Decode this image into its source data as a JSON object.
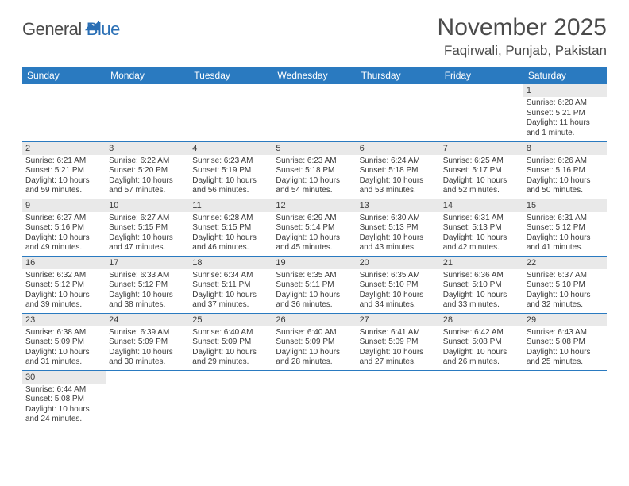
{
  "logo": {
    "general": "General",
    "blue": "Blue"
  },
  "title": "November 2025",
  "location": "Faqirwali, Punjab, Pakistan",
  "colors": {
    "header_bg": "#2a7ac0",
    "header_text": "#ffffff",
    "daynum_bg": "#e9e9e9",
    "border": "#2a7ac0",
    "text": "#3a3a3a",
    "logo_gray": "#4a4a4a",
    "logo_blue": "#2a6fb5"
  },
  "weekdays": [
    "Sunday",
    "Monday",
    "Tuesday",
    "Wednesday",
    "Thursday",
    "Friday",
    "Saturday"
  ],
  "weeks": [
    [
      null,
      null,
      null,
      null,
      null,
      null,
      {
        "n": "1",
        "sr": "Sunrise: 6:20 AM",
        "ss": "Sunset: 5:21 PM",
        "dl": "Daylight: 11 hours and 1 minute."
      }
    ],
    [
      {
        "n": "2",
        "sr": "Sunrise: 6:21 AM",
        "ss": "Sunset: 5:21 PM",
        "dl": "Daylight: 10 hours and 59 minutes."
      },
      {
        "n": "3",
        "sr": "Sunrise: 6:22 AM",
        "ss": "Sunset: 5:20 PM",
        "dl": "Daylight: 10 hours and 57 minutes."
      },
      {
        "n": "4",
        "sr": "Sunrise: 6:23 AM",
        "ss": "Sunset: 5:19 PM",
        "dl": "Daylight: 10 hours and 56 minutes."
      },
      {
        "n": "5",
        "sr": "Sunrise: 6:23 AM",
        "ss": "Sunset: 5:18 PM",
        "dl": "Daylight: 10 hours and 54 minutes."
      },
      {
        "n": "6",
        "sr": "Sunrise: 6:24 AM",
        "ss": "Sunset: 5:18 PM",
        "dl": "Daylight: 10 hours and 53 minutes."
      },
      {
        "n": "7",
        "sr": "Sunrise: 6:25 AM",
        "ss": "Sunset: 5:17 PM",
        "dl": "Daylight: 10 hours and 52 minutes."
      },
      {
        "n": "8",
        "sr": "Sunrise: 6:26 AM",
        "ss": "Sunset: 5:16 PM",
        "dl": "Daylight: 10 hours and 50 minutes."
      }
    ],
    [
      {
        "n": "9",
        "sr": "Sunrise: 6:27 AM",
        "ss": "Sunset: 5:16 PM",
        "dl": "Daylight: 10 hours and 49 minutes."
      },
      {
        "n": "10",
        "sr": "Sunrise: 6:27 AM",
        "ss": "Sunset: 5:15 PM",
        "dl": "Daylight: 10 hours and 47 minutes."
      },
      {
        "n": "11",
        "sr": "Sunrise: 6:28 AM",
        "ss": "Sunset: 5:15 PM",
        "dl": "Daylight: 10 hours and 46 minutes."
      },
      {
        "n": "12",
        "sr": "Sunrise: 6:29 AM",
        "ss": "Sunset: 5:14 PM",
        "dl": "Daylight: 10 hours and 45 minutes."
      },
      {
        "n": "13",
        "sr": "Sunrise: 6:30 AM",
        "ss": "Sunset: 5:13 PM",
        "dl": "Daylight: 10 hours and 43 minutes."
      },
      {
        "n": "14",
        "sr": "Sunrise: 6:31 AM",
        "ss": "Sunset: 5:13 PM",
        "dl": "Daylight: 10 hours and 42 minutes."
      },
      {
        "n": "15",
        "sr": "Sunrise: 6:31 AM",
        "ss": "Sunset: 5:12 PM",
        "dl": "Daylight: 10 hours and 41 minutes."
      }
    ],
    [
      {
        "n": "16",
        "sr": "Sunrise: 6:32 AM",
        "ss": "Sunset: 5:12 PM",
        "dl": "Daylight: 10 hours and 39 minutes."
      },
      {
        "n": "17",
        "sr": "Sunrise: 6:33 AM",
        "ss": "Sunset: 5:12 PM",
        "dl": "Daylight: 10 hours and 38 minutes."
      },
      {
        "n": "18",
        "sr": "Sunrise: 6:34 AM",
        "ss": "Sunset: 5:11 PM",
        "dl": "Daylight: 10 hours and 37 minutes."
      },
      {
        "n": "19",
        "sr": "Sunrise: 6:35 AM",
        "ss": "Sunset: 5:11 PM",
        "dl": "Daylight: 10 hours and 36 minutes."
      },
      {
        "n": "20",
        "sr": "Sunrise: 6:35 AM",
        "ss": "Sunset: 5:10 PM",
        "dl": "Daylight: 10 hours and 34 minutes."
      },
      {
        "n": "21",
        "sr": "Sunrise: 6:36 AM",
        "ss": "Sunset: 5:10 PM",
        "dl": "Daylight: 10 hours and 33 minutes."
      },
      {
        "n": "22",
        "sr": "Sunrise: 6:37 AM",
        "ss": "Sunset: 5:10 PM",
        "dl": "Daylight: 10 hours and 32 minutes."
      }
    ],
    [
      {
        "n": "23",
        "sr": "Sunrise: 6:38 AM",
        "ss": "Sunset: 5:09 PM",
        "dl": "Daylight: 10 hours and 31 minutes."
      },
      {
        "n": "24",
        "sr": "Sunrise: 6:39 AM",
        "ss": "Sunset: 5:09 PM",
        "dl": "Daylight: 10 hours and 30 minutes."
      },
      {
        "n": "25",
        "sr": "Sunrise: 6:40 AM",
        "ss": "Sunset: 5:09 PM",
        "dl": "Daylight: 10 hours and 29 minutes."
      },
      {
        "n": "26",
        "sr": "Sunrise: 6:40 AM",
        "ss": "Sunset: 5:09 PM",
        "dl": "Daylight: 10 hours and 28 minutes."
      },
      {
        "n": "27",
        "sr": "Sunrise: 6:41 AM",
        "ss": "Sunset: 5:09 PM",
        "dl": "Daylight: 10 hours and 27 minutes."
      },
      {
        "n": "28",
        "sr": "Sunrise: 6:42 AM",
        "ss": "Sunset: 5:08 PM",
        "dl": "Daylight: 10 hours and 26 minutes."
      },
      {
        "n": "29",
        "sr": "Sunrise: 6:43 AM",
        "ss": "Sunset: 5:08 PM",
        "dl": "Daylight: 10 hours and 25 minutes."
      }
    ],
    [
      {
        "n": "30",
        "sr": "Sunrise: 6:44 AM",
        "ss": "Sunset: 5:08 PM",
        "dl": "Daylight: 10 hours and 24 minutes."
      },
      null,
      null,
      null,
      null,
      null,
      null
    ]
  ]
}
